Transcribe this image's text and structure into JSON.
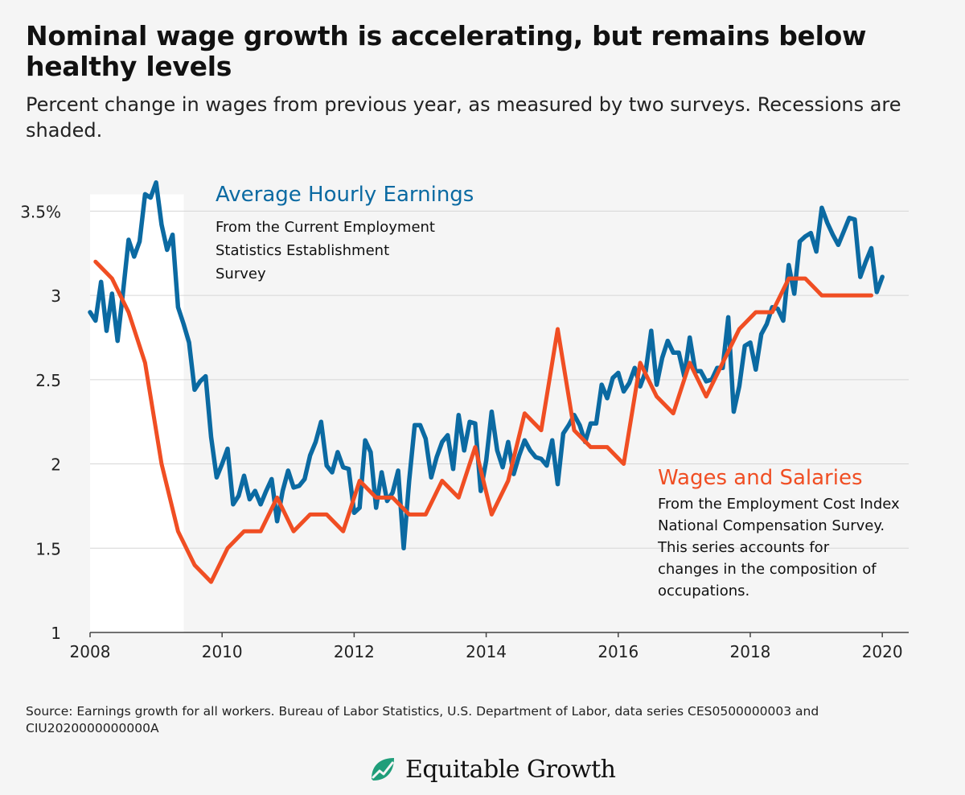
{
  "title": "Nominal wage growth is accelerating, but remains below healthy levels",
  "subtitle": "Percent change in wages from previous year, as measured by two surveys. Recessions are shaded.",
  "source": "Source: Earnings growth for all workers. Bureau of Labor Statistics, U.S. Department of Labor, data series CES0500000003 and CIU2020000000000A",
  "logo_text": "Equitable Growth",
  "chart_data": {
    "type": "line",
    "title": "Nominal wage growth is accelerating, but remains below healthy levels",
    "xlabel": "",
    "ylabel": "",
    "xlim": [
      2008,
      2020.4
    ],
    "ylim": [
      1,
      3.75
    ],
    "x_ticks": [
      2008,
      2010,
      2012,
      2014,
      2016,
      2018,
      2020
    ],
    "y_ticks": [
      {
        "value": 1,
        "label": "1"
      },
      {
        "value": 1.5,
        "label": "1.5"
      },
      {
        "value": 2,
        "label": "2"
      },
      {
        "value": 2.5,
        "label": "2.5"
      },
      {
        "value": 3,
        "label": "3"
      },
      {
        "value": 3.5,
        "label": "3.5%"
      }
    ],
    "grid": "horizontal",
    "recession": {
      "start": 2008.0,
      "end": 2009.42
    },
    "series": [
      {
        "name": "Average Hourly Earnings",
        "note": "From the Current Employment Statistics Establishment Survey",
        "color": "#0b6aa2",
        "x": [
          2008.0,
          2008.083,
          2008.167,
          2008.25,
          2008.333,
          2008.417,
          2008.5,
          2008.583,
          2008.667,
          2008.75,
          2008.833,
          2008.917,
          2009.0,
          2009.083,
          2009.167,
          2009.25,
          2009.333,
          2009.417,
          2009.5,
          2009.583,
          2009.667,
          2009.75,
          2009.833,
          2009.917,
          2010.0,
          2010.083,
          2010.167,
          2010.25,
          2010.333,
          2010.417,
          2010.5,
          2010.583,
          2010.667,
          2010.75,
          2010.833,
          2010.917,
          2011.0,
          2011.083,
          2011.167,
          2011.25,
          2011.333,
          2011.417,
          2011.5,
          2011.583,
          2011.667,
          2011.75,
          2011.833,
          2011.917,
          2012.0,
          2012.083,
          2012.167,
          2012.25,
          2012.333,
          2012.417,
          2012.5,
          2012.583,
          2012.667,
          2012.75,
          2012.833,
          2012.917,
          2013.0,
          2013.083,
          2013.167,
          2013.25,
          2013.333,
          2013.417,
          2013.5,
          2013.583,
          2013.667,
          2013.75,
          2013.833,
          2013.917,
          2014.0,
          2014.083,
          2014.167,
          2014.25,
          2014.333,
          2014.417,
          2014.5,
          2014.583,
          2014.667,
          2014.75,
          2014.833,
          2014.917,
          2015.0,
          2015.083,
          2015.167,
          2015.25,
          2015.333,
          2015.417,
          2015.5,
          2015.583,
          2015.667,
          2015.75,
          2015.833,
          2015.917,
          2016.0,
          2016.083,
          2016.167,
          2016.25,
          2016.333,
          2016.417,
          2016.5,
          2016.583,
          2016.667,
          2016.75,
          2016.833,
          2016.917,
          2017.0,
          2017.083,
          2017.167,
          2017.25,
          2017.333,
          2017.417,
          2017.5,
          2017.583,
          2017.667,
          2017.75,
          2017.833,
          2017.917,
          2018.0,
          2018.083,
          2018.167,
          2018.25,
          2018.333,
          2018.417,
          2018.5,
          2018.583,
          2018.667,
          2018.75,
          2018.833,
          2018.917,
          2019.0,
          2019.083,
          2019.167,
          2019.25,
          2019.333,
          2019.417,
          2019.5,
          2019.583,
          2019.667,
          2019.75,
          2019.833,
          2019.917,
          2020.0
        ],
        "y": [
          2.9,
          2.85,
          3.08,
          2.79,
          3.01,
          2.73,
          3.02,
          3.33,
          3.23,
          3.32,
          3.6,
          3.58,
          3.67,
          3.42,
          3.27,
          3.36,
          2.93,
          2.83,
          2.72,
          2.44,
          2.49,
          2.52,
          2.16,
          1.92,
          2.0,
          2.09,
          1.76,
          1.81,
          1.93,
          1.79,
          1.84,
          1.76,
          1.84,
          1.91,
          1.66,
          1.84,
          1.96,
          1.86,
          1.87,
          1.91,
          2.05,
          2.13,
          2.25,
          1.99,
          1.95,
          2.07,
          1.98,
          1.97,
          1.71,
          1.74,
          2.14,
          2.07,
          1.74,
          1.95,
          1.78,
          1.83,
          1.96,
          1.5,
          1.9,
          2.23,
          2.23,
          2.15,
          1.92,
          2.04,
          2.13,
          2.17,
          1.97,
          2.29,
          2.08,
          2.25,
          2.24,
          1.84,
          2.02,
          2.31,
          2.08,
          1.98,
          2.13,
          1.94,
          2.05,
          2.14,
          2.08,
          2.04,
          2.03,
          1.99,
          2.14,
          1.88,
          2.18,
          2.23,
          2.29,
          2.23,
          2.13,
          2.24,
          2.24,
          2.47,
          2.39,
          2.51,
          2.54,
          2.43,
          2.48,
          2.57,
          2.46,
          2.55,
          2.79,
          2.47,
          2.63,
          2.73,
          2.66,
          2.66,
          2.52,
          2.75,
          2.55,
          2.55,
          2.49,
          2.5,
          2.57,
          2.57,
          2.87,
          2.31,
          2.46,
          2.7,
          2.72,
          2.56,
          2.77,
          2.83,
          2.93,
          2.92,
          2.85,
          3.18,
          3.01,
          3.32,
          3.35,
          3.37,
          3.26,
          3.52,
          3.43,
          3.36,
          3.3,
          3.38,
          3.46,
          3.45,
          3.11,
          3.2,
          3.28,
          3.02,
          3.11
        ]
      },
      {
        "name": "Wages and Salaries",
        "note": "From the Employment Cost Index National Compensation Survey. This series accounts for changes in the composition of occupations.",
        "color": "#f04e23",
        "x": [
          2008.083,
          2008.333,
          2008.583,
          2008.833,
          2009.083,
          2009.333,
          2009.583,
          2009.833,
          2010.083,
          2010.333,
          2010.583,
          2010.833,
          2011.083,
          2011.333,
          2011.583,
          2011.833,
          2012.083,
          2012.333,
          2012.583,
          2012.833,
          2013.083,
          2013.333,
          2013.583,
          2013.833,
          2014.083,
          2014.333,
          2014.583,
          2014.833,
          2015.083,
          2015.333,
          2015.583,
          2015.833,
          2016.083,
          2016.333,
          2016.583,
          2016.833,
          2017.083,
          2017.333,
          2017.583,
          2017.833,
          2018.083,
          2018.333,
          2018.583,
          2018.833,
          2019.083,
          2019.333,
          2019.583,
          2019.833
        ],
        "y": [
          3.2,
          3.1,
          2.9,
          2.6,
          2.0,
          1.6,
          1.4,
          1.3,
          1.5,
          1.6,
          1.6,
          1.8,
          1.6,
          1.7,
          1.7,
          1.6,
          1.9,
          1.8,
          1.8,
          1.7,
          1.7,
          1.9,
          1.8,
          2.1,
          1.7,
          1.9,
          2.3,
          2.2,
          2.8,
          2.2,
          2.1,
          2.1,
          2.0,
          2.6,
          2.4,
          2.3,
          2.6,
          2.4,
          2.6,
          2.8,
          2.9,
          2.9,
          3.1,
          3.1,
          3.0,
          3.0,
          3.0,
          3.0
        ]
      }
    ]
  }
}
